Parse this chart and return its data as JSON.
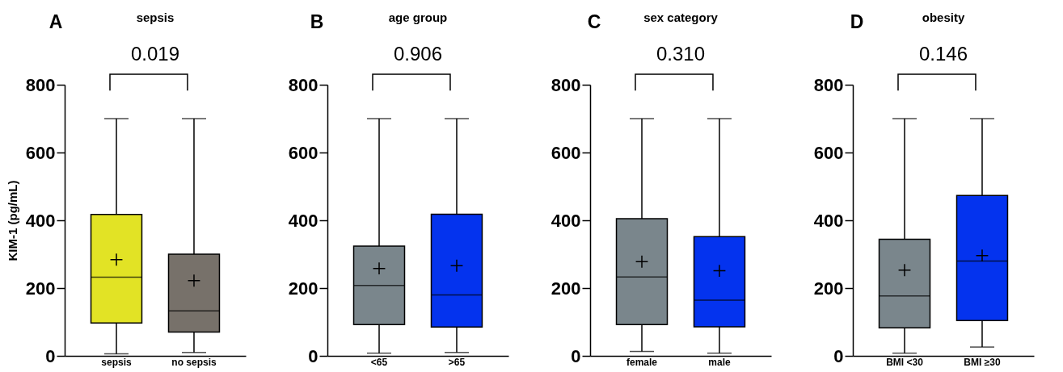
{
  "chart_data": [
    {
      "type": "box",
      "title": "sepsis",
      "ylabel": "KIM-1 (pg/mL)",
      "annotations": [
        "A",
        "0.019"
      ],
      "categories": [
        "sepsis",
        "no sepsis"
      ],
      "colors": [
        "#e2e325",
        "#77716a"
      ],
      "ylim": [
        0,
        800
      ],
      "yticks": [
        0,
        200,
        400,
        600,
        800
      ],
      "boxes": [
        {
          "low": 6,
          "q1": 97,
          "median": 232,
          "q3": 417,
          "high": 700,
          "mean": 284
        },
        {
          "low": 10,
          "q1": 70,
          "median": 133,
          "q3": 300,
          "high": 700,
          "mean": 222
        }
      ]
    },
    {
      "type": "box",
      "title": "age group",
      "annotations": [
        "B",
        "0.906"
      ],
      "categories": [
        "<65",
        ">65"
      ],
      "colors": [
        "#7a868c",
        "#0433ee"
      ],
      "ylim": [
        0,
        800
      ],
      "yticks": [
        0,
        200,
        400,
        600,
        800
      ],
      "boxes": [
        {
          "low": 8,
          "q1": 92,
          "median": 208,
          "q3": 324,
          "high": 700,
          "mean": 258
        },
        {
          "low": 10,
          "q1": 85,
          "median": 180,
          "q3": 418,
          "high": 700,
          "mean": 266
        }
      ]
    },
    {
      "type": "box",
      "title": "sex category",
      "annotations": [
        "C",
        "0.310"
      ],
      "categories": [
        "female",
        "male"
      ],
      "colors": [
        "#7a868c",
        "#0433ee"
      ],
      "ylim": [
        0,
        800
      ],
      "yticks": [
        0,
        200,
        400,
        600,
        800
      ],
      "boxes": [
        {
          "low": 13,
          "q1": 92,
          "median": 233,
          "q3": 405,
          "high": 700,
          "mean": 278
        },
        {
          "low": 8,
          "q1": 86,
          "median": 164,
          "q3": 352,
          "high": 700,
          "mean": 251
        }
      ]
    },
    {
      "type": "box",
      "title": "obesity",
      "annotations": [
        "D",
        "0.146"
      ],
      "categories": [
        "BMI <30",
        "BMI ≥30"
      ],
      "colors": [
        "#7a868c",
        "#0433ee"
      ],
      "ylim": [
        0,
        800
      ],
      "yticks": [
        0,
        200,
        400,
        600,
        800
      ],
      "boxes": [
        {
          "low": 8,
          "q1": 83,
          "median": 177,
          "q3": 344,
          "high": 700,
          "mean": 253
        },
        {
          "low": 26,
          "q1": 104,
          "median": 280,
          "q3": 473,
          "high": 700,
          "mean": 296
        }
      ]
    }
  ]
}
